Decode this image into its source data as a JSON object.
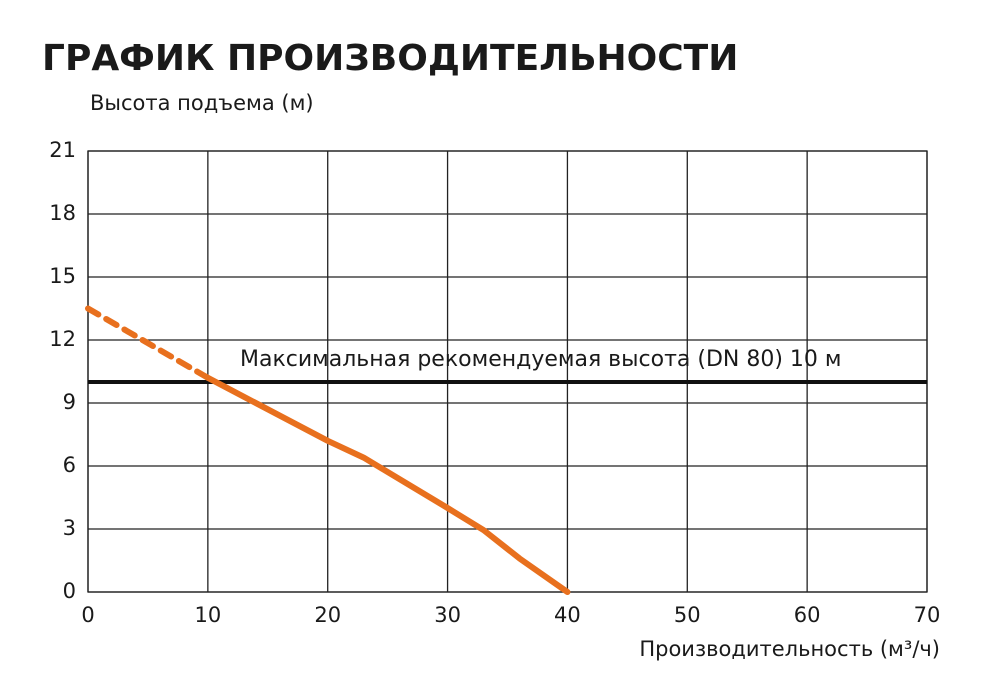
{
  "chart_data": {
    "type": "line",
    "title": "ГРАФИК ПРОИЗВОДИТЕЛЬНОСТИ",
    "y_label": "Высота подъема (м)",
    "x_label": "Производительность (м³/ч)",
    "x": [
      0,
      10,
      15,
      20,
      23,
      30,
      33,
      36,
      40
    ],
    "series": [
      {
        "color": "#e8701e",
        "dashed": true,
        "values": [
          13.5,
          10.2,
          null,
          null,
          null,
          null,
          null,
          null,
          null
        ]
      },
      {
        "color": "#e8701e",
        "dashed": false,
        "values": [
          null,
          10.2,
          8.7,
          7.2,
          6.4,
          4.0,
          2.95,
          1.6,
          0
        ]
      }
    ],
    "reference_line": {
      "value": 10,
      "label": "Максимальная рекомендуемая высота (DN 80) 10 м",
      "color": "#111111"
    },
    "xlim": [
      0,
      70
    ],
    "xticks": [
      0,
      10,
      20,
      30,
      40,
      50,
      60,
      70
    ],
    "ylim": [
      0,
      21
    ],
    "yticks": [
      0,
      3,
      6,
      9,
      12,
      15,
      18,
      21
    ],
    "grid": true
  }
}
